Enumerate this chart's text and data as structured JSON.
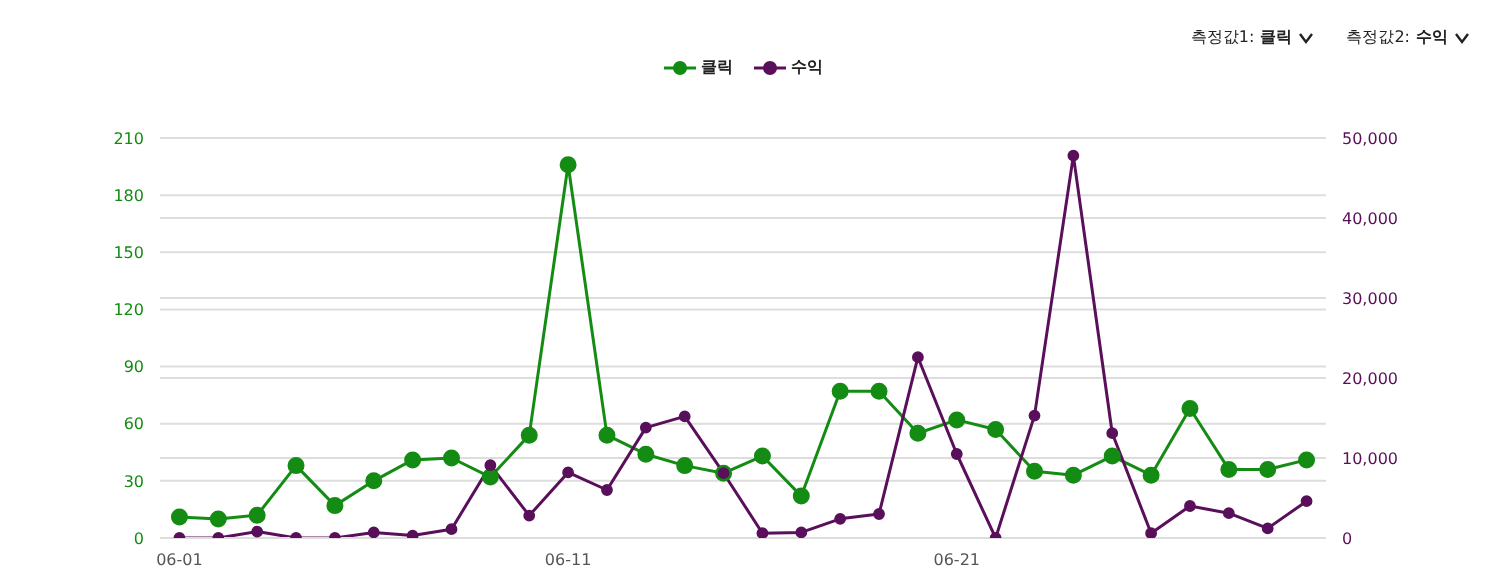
{
  "chart_data": {
    "type": "line",
    "categories": [
      "06-01",
      null,
      null,
      null,
      null,
      null,
      null,
      null,
      null,
      null,
      "06-11",
      null,
      null,
      null,
      null,
      null,
      null,
      null,
      null,
      null,
      "06-21",
      null,
      null,
      null,
      null,
      null,
      null,
      null,
      null,
      null
    ],
    "series": [
      {
        "name": "클릭",
        "color": "#148c14",
        "values": [
          11,
          10,
          12,
          38,
          17,
          30,
          41,
          42,
          32,
          54,
          196,
          54,
          44,
          38,
          34,
          43,
          22,
          77,
          77,
          55,
          62,
          57,
          35,
          33,
          43,
          33,
          68,
          36,
          36,
          41
        ]
      },
      {
        "name": "수익",
        "color": "#5a0f5a",
        "axis": "y2",
        "values": [
          0,
          0,
          800,
          0,
          0,
          700,
          300,
          1100,
          9100,
          2800,
          8200,
          6000,
          13800,
          15200,
          8100,
          600,
          700,
          2400,
          3000,
          22600,
          10500,
          0,
          15300,
          47800,
          13100,
          600,
          4000,
          3100,
          1200,
          4600
        ]
      }
    ],
    "ylim": [
      0,
      210
    ],
    "yticks": [
      0,
      30,
      60,
      90,
      120,
      150,
      180,
      210
    ],
    "y2lim": [
      0,
      50000
    ],
    "y2ticks": [
      0,
      {
        "value": 10000,
        "label": "10,000"
      },
      {
        "value": 20000,
        "label": "20,000"
      },
      {
        "value": 30000,
        "label": "30,000"
      },
      {
        "value": 40000,
        "label": "40,000"
      },
      {
        "value": 50000,
        "label": "50,000"
      }
    ],
    "grid": "y",
    "legend": "top",
    "marker": "circle",
    "line_style": "solid",
    "annotations": [
      "측정값1: 클릭",
      "측정값2: 수익"
    ]
  }
}
